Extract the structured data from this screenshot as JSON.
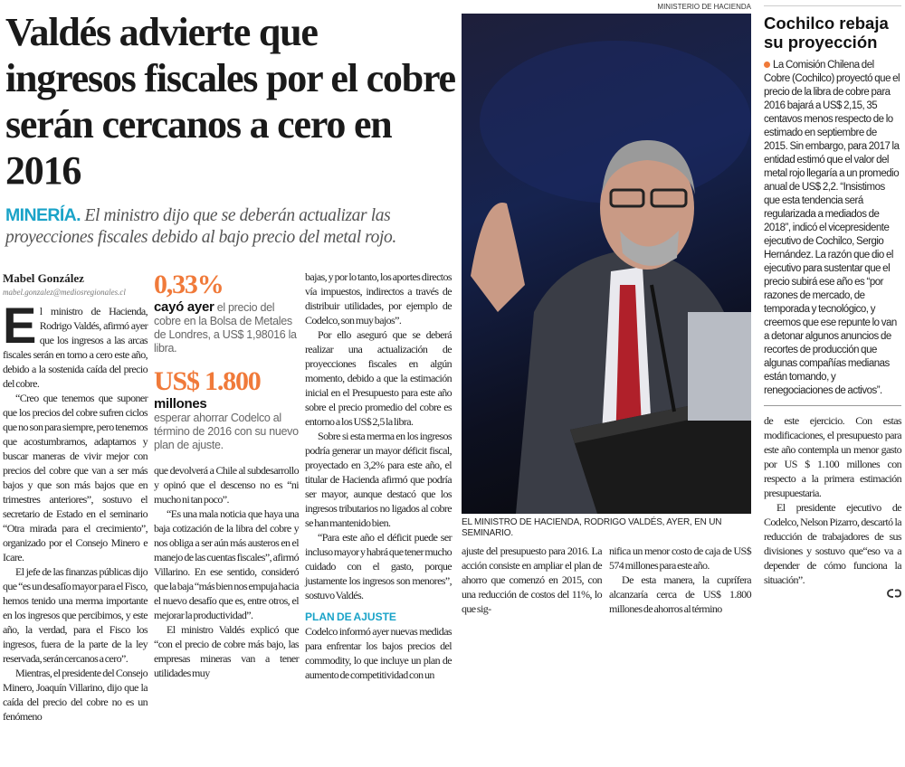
{
  "headline": "Valdés advierte que ingresos fiscales por el cobre serán cercanos a cero en 2016",
  "subhead": {
    "kicker": "MINERÍA.",
    "text": "El ministro dijo que se deberán actualizar las proyecciones fiscales debido al bajo precio del metal rojo."
  },
  "byline": {
    "author": "Mabel González",
    "email": "mabel.gonzalez@mediosregionales.cl"
  },
  "colors": {
    "accent_orange": "#f07a3a",
    "accent_cyan": "#1aa3c8"
  },
  "col1": {
    "dropcap": "E",
    "p1": "l ministro de Hacienda, Rodrigo Valdés, afirmó ayer que los ingresos a las arcas fiscales serán en torno a cero este año, debido a la sostenida caída del precio del cobre.",
    "p2": "“Creo que tenemos que suponer que los precios del cobre sufren ciclos que no son para siempre, pero tenemos que acostumbrarnos, adaptarnos y buscar maneras de vivir mejor con precios del cobre que van a ser más bajos y que son más bajos que en trimestres anteriores”, sostuvo el secretario de Estado en el seminario “Otra mirada para el crecimiento”, organizado por el Consejo Minero e Icare.",
    "p3": "El jefe de las finanzas públicas dijo que “es un desafío mayor para el Fisco, hemos tenido una merma importante en los ingresos que percibimos, y este año, la verdad, para el Fisco los ingresos, fuera de la parte de la ley reservada, serán cercanos a cero”.",
    "p4": "Mientras, el presidente del Consejo Minero, Joaquín Villarino, dijo que la caída del precio del cobre no es un fenómeno"
  },
  "stats": [
    {
      "value": "0,33%",
      "lead": "cayó ayer",
      "text": "el precio del cobre en la Bolsa de Metales de Londres, a US$ 1,98016 la libra."
    },
    {
      "value": "US$ 1.800",
      "lead": "millones",
      "text": "esperar ahorrar Codelco al término de 2016 con su nuevo plan de ajuste."
    }
  ],
  "col2": {
    "p1": "que devolverá a Chile al subdesarrollo y opinó que el descenso no es “ni mucho ni tan poco”.",
    "p2": "“Es una mala noticia que haya una baja cotización de la libra del cobre y nos obliga a ser aún más austeros en el manejo de las cuentas fiscales”, afirmó Villarino. En ese sentido, consideró que la baja “más bien nos empuja hacia el nuevo desafío que es, entre otros, el mejorar la productividad”.",
    "p3": "El ministro Valdés explicó que “con el precio de cobre más bajo, las empresas mineras van a tener utilidades muy"
  },
  "col3": {
    "p1": "bajas, y por lo tanto, los aportes directos vía impuestos, indirectos a través de distribuir utilidades, por ejemplo de Codelco, son muy bajos”.",
    "p2": "Por ello aseguró que se deberá realizar una actualización de proyecciones fiscales en algún momento, debido a que la estimación inicial en el Presupuesto para este año sobre el precio promedio del cobre es entorno a los US$ 2,5 la libra.",
    "p3": "Sobre si esta merma en los ingresos podría generar un mayor déficit fiscal, proyectado en 3,2% para este año, el titular de Hacienda afirmó que podría ser mayor, aunque destacó que los ingresos tributarios no ligados al cobre se han mantenido bien.",
    "p4": "“Para este año el déficit puede ser incluso mayor y habrá que tener mucho cuidado con el gasto, porque justamente los ingresos son menores”, sostuvo Valdés.",
    "subheading": "PLAN DE AJUSTE",
    "p5": "Codelco informó ayer nuevas medidas para enfrentar los bajos precios del commodity, lo que incluye un plan de aumento de competitividad con un"
  },
  "photo": {
    "credit": "MINISTERIO DE HACIENDA",
    "caption": "EL MINISTRO DE HACIENDA, RODRIGO VALDÉS, AYER, EN UN SEMINARIO."
  },
  "col4": {
    "p1": "ajuste del presupuesto para 2016. La acción consiste en ampliar el plan de ahorro que comenzó en 2015, con una reducción de costos del 11%, lo que sig-"
  },
  "col5": {
    "p1": "nifica un menor costo de caja de US$ 574 millones para este año.",
    "p2": "De esta manera, la cuprífera alcanzaría cerca de US$ 1.800 millones de ahorros al término"
  },
  "sidebar": {
    "title": "Cochilco rebaja su proyección",
    "body": "La Comisión Chilena del Cobre (Cochilco) proyectó que el precio de la libra de cobre para 2016 bajará a US$ 2,15, 35 centavos menos respecto de lo estimado en septiembre de 2015. Sin embargo, para 2017 la entidad estimó que el valor del metal rojo llegaría a un promedio anual de US$ 2,2. “Insistimos que esta tendencia será regularizada a mediados de 2018”, indicó el vicepresidente ejecutivo de Cochilco, Sergio Hernández. La razón que dio el ejecutivo para sustentar que el precio subirá ese año es “por razones de mercado, de temporada y tecnológico, y creemos que ese repunte lo van a detonar algunos anuncios de recortes de producción que algunas compañías medianas están tomando, y renegociaciones de activos”."
  },
  "col6": {
    "p1": "de este ejercicio. Con estas modificaciones, el presupuesto para este año contempla un menor gasto por US $ 1.100 millones con respecto a la primera estimación presupuestaria.",
    "p2": "El presidente ejecutivo de Codelco, Nelson Pizarro, descartó la reducción de trabajadores de sus divisiones y sostuvo que“eso va a depender de cómo funciona la situación”."
  }
}
